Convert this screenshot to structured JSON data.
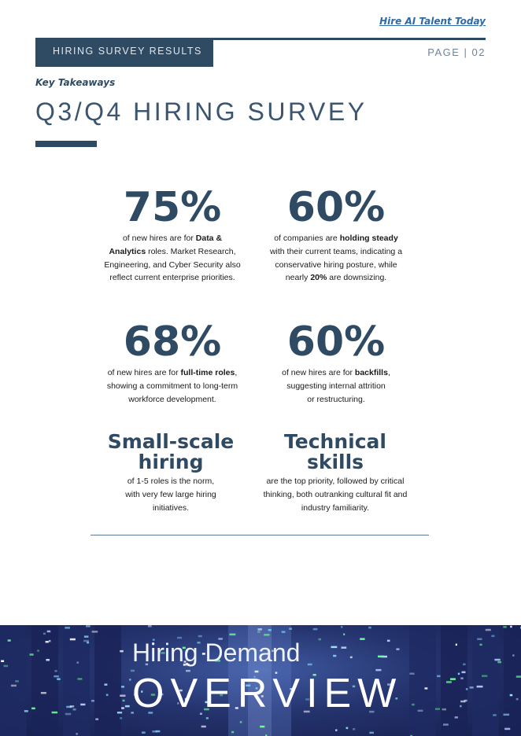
{
  "header": {
    "top_link": "Hire AI Talent Today",
    "section_tab": "HIRING SURVEY RESULTS",
    "page_number": "PAGE | 02"
  },
  "intro": {
    "subhead": "Key Takeaways",
    "title": "Q3/Q4 HIRING SURVEY"
  },
  "stats": [
    {
      "figure": "75%",
      "text": [
        {
          "t": "of new hires are for ",
          "b": false
        },
        {
          "t": "Data &",
          "b": true
        },
        {
          "br": true
        },
        {
          "t": "Analytics",
          "b": true
        },
        {
          "t": " roles. Market Research,",
          "b": false
        },
        {
          "br": true
        },
        {
          "t": "Engineering, and Cyber Security also",
          "b": false
        },
        {
          "br": true
        },
        {
          "t": "reflect current enterprise priorities.",
          "b": false
        }
      ]
    },
    {
      "figure": "60%",
      "text": [
        {
          "t": "of companies are ",
          "b": false
        },
        {
          "t": "holding steady",
          "b": true
        },
        {
          "br": true
        },
        {
          "t": "with their current teams, indicating a",
          "b": false
        },
        {
          "br": true
        },
        {
          "t": "conservative hiring posture, while",
          "b": false
        },
        {
          "br": true
        },
        {
          "t": "nearly ",
          "b": false
        },
        {
          "t": "20%",
          "b": true
        },
        {
          "t": " are downsizing.",
          "b": false
        }
      ]
    },
    {
      "figure": "68%",
      "text": [
        {
          "t": "of new hires are for ",
          "b": false
        },
        {
          "t": "full-time roles",
          "b": true
        },
        {
          "t": ",",
          "b": false
        },
        {
          "br": true
        },
        {
          "t": "showing a commitment to long-term",
          "b": false
        },
        {
          "br": true
        },
        {
          "t": "workforce development.",
          "b": false
        }
      ]
    },
    {
      "figure": "60%",
      "text": [
        {
          "t": "of new hires are for ",
          "b": false
        },
        {
          "t": "backfills",
          "b": true
        },
        {
          "t": ",",
          "b": false
        },
        {
          "br": true
        },
        {
          "t": "suggesting internal attrition",
          "b": false
        },
        {
          "br": true
        },
        {
          "t": "or restructuring.",
          "b": false
        }
      ]
    },
    {
      "figure_lines": [
        "Small-scale",
        "hiring"
      ],
      "text": [
        {
          "t": "of 1-5 roles is the norm,",
          "b": false
        },
        {
          "br": true
        },
        {
          "t": "with very few large hiring",
          "b": false
        },
        {
          "br": true
        },
        {
          "t": "initiatives.",
          "b": false
        }
      ]
    },
    {
      "figure_lines": [
        "Technical",
        "skills"
      ],
      "text": [
        {
          "t": "are the top priority, followed by critical",
          "b": false
        },
        {
          "br": true
        },
        {
          "t": "thinking, both outranking cultural fit and",
          "b": false
        },
        {
          "br": true
        },
        {
          "t": "industry familiarity.",
          "b": false
        }
      ]
    }
  ],
  "banner": {
    "subtitle": "Hiring Demand",
    "title": "OVERVIEW"
  }
}
